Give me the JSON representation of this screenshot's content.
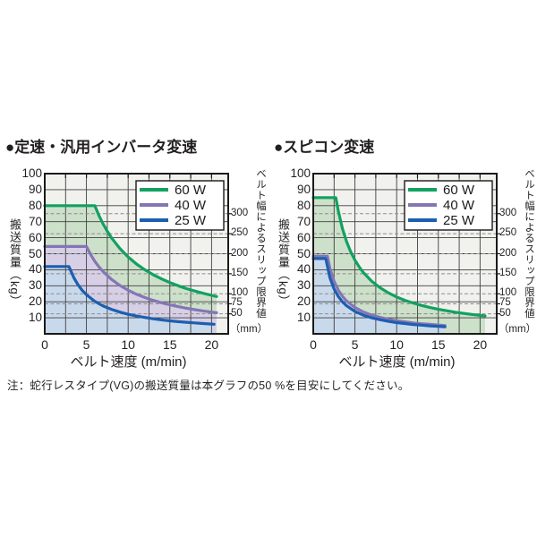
{
  "page": {
    "note": "注：蛇行レスタイプ(VG)の搬送質量は本グラフの50 %を目安にしてください。"
  },
  "style": {
    "plot_bg": "#f1f2ee",
    "grid_color": "#3f3f3f",
    "dash_color": "#8c8c8c",
    "border_color": "#1a1a1a",
    "legend_bg": "#ffffff"
  },
  "chart_data": [
    {
      "type": "line",
      "title": "●定速・汎用インバータ変速",
      "xlabel": "ベルト速度 (m/min)",
      "ylabel": "搬送質量（kg）",
      "y2label": "ベルト幅によるスリップ限界値",
      "y2unit": "（mm）",
      "xlim": [
        0,
        22
      ],
      "ylim": [
        0,
        100
      ],
      "x_ticks": [
        0,
        5,
        10,
        15,
        20
      ],
      "x_minor_step": 2.5,
      "y_ticks": [
        10,
        20,
        30,
        40,
        50,
        60,
        70,
        80,
        90,
        100
      ],
      "y2_ticks_mm": [
        300,
        250,
        200,
        150,
        100,
        75,
        50
      ],
      "kg_per_mm": 0.25,
      "grid": true,
      "legend_position": "top-right",
      "series": [
        {
          "name": "60 W",
          "color": "#12a160",
          "fill": "#cde0ca",
          "points": [
            [
              0,
              80
            ],
            [
              6,
              80
            ],
            [
              6.5,
              73.8
            ],
            [
              7,
              68.6
            ],
            [
              7.5,
              64
            ],
            [
              8,
              60
            ],
            [
              9,
              53.3
            ],
            [
              10,
              48
            ],
            [
              11,
              43.6
            ],
            [
              12,
              40
            ],
            [
              13,
              36.9
            ],
            [
              14,
              34.3
            ],
            [
              15,
              32
            ],
            [
              16,
              30
            ],
            [
              17,
              28.2
            ],
            [
              18,
              26.7
            ],
            [
              19,
              25.3
            ],
            [
              20,
              24
            ],
            [
              20.6,
              23.3
            ]
          ]
        },
        {
          "name": "40 W",
          "color": "#8476b5",
          "fill": "#d6cfe6",
          "points": [
            [
              0,
              54.5
            ],
            [
              5,
              54.5
            ],
            [
              5.5,
              49.5
            ],
            [
              6,
              45.3
            ],
            [
              6.5,
              41.8
            ],
            [
              7,
              38.9
            ],
            [
              8,
              34
            ],
            [
              9,
              30.2
            ],
            [
              10,
              27.2
            ],
            [
              11,
              24.7
            ],
            [
              12,
              22.7
            ],
            [
              13,
              20.9
            ],
            [
              14,
              19.4
            ],
            [
              15,
              18.1
            ],
            [
              16,
              17
            ],
            [
              17,
              16
            ],
            [
              18,
              15.1
            ],
            [
              19,
              14.3
            ],
            [
              20,
              13.6
            ],
            [
              20.6,
              13.2
            ]
          ]
        },
        {
          "name": "25 W",
          "color": "#1c5fb0",
          "fill": "#c9d9ec",
          "points": [
            [
              0,
              42
            ],
            [
              2.9,
              42
            ],
            [
              3.5,
              34.9
            ],
            [
              4,
              30.5
            ],
            [
              4.5,
              27.1
            ],
            [
              5,
              24.4
            ],
            [
              6,
              20.3
            ],
            [
              7,
              17.4
            ],
            [
              8,
              15.3
            ],
            [
              9,
              13.6
            ],
            [
              10,
              12.2
            ],
            [
              11,
              11.1
            ],
            [
              12,
              10.2
            ],
            [
              13,
              9.4
            ],
            [
              14,
              8.7
            ],
            [
              15,
              8.1
            ],
            [
              16,
              7.6
            ],
            [
              17,
              7.2
            ],
            [
              18,
              6.8
            ],
            [
              19,
              6.4
            ],
            [
              20,
              6.1
            ],
            [
              20.3,
              6
            ]
          ]
        }
      ]
    },
    {
      "type": "line",
      "title": "●スピコン変速",
      "xlabel": "ベルト速度 (m/min)",
      "ylabel": "搬送質量（kg）",
      "y2label": "ベルト幅によるスリップ限界値",
      "y2unit": "（mm）",
      "xlim": [
        0,
        22
      ],
      "ylim": [
        0,
        100
      ],
      "x_ticks": [
        0,
        5,
        10,
        15,
        20
      ],
      "x_minor_step": 2.5,
      "y_ticks": [
        10,
        20,
        30,
        40,
        50,
        60,
        70,
        80,
        90,
        100
      ],
      "y2_ticks_mm": [
        300,
        250,
        200,
        150,
        100,
        75,
        50
      ],
      "kg_per_mm": 0.25,
      "grid": true,
      "legend_position": "top-right",
      "series": [
        {
          "name": "60 W",
          "color": "#12a160",
          "fill": "#cde0ca",
          "points": [
            [
              0,
              85
            ],
            [
              2.7,
              85
            ],
            [
              3,
              76.7
            ],
            [
              3.5,
              65.7
            ],
            [
              4,
              57.5
            ],
            [
              4.5,
              51.1
            ],
            [
              5,
              46
            ],
            [
              5.5,
              41.8
            ],
            [
              6,
              38.3
            ],
            [
              7,
              32.9
            ],
            [
              8,
              28.8
            ],
            [
              9,
              25.6
            ],
            [
              10,
              23
            ],
            [
              11,
              20.9
            ],
            [
              12,
              19.2
            ],
            [
              13,
              17.7
            ],
            [
              14,
              16.4
            ],
            [
              15,
              15.3
            ],
            [
              16,
              14.4
            ],
            [
              17,
              13.5
            ],
            [
              18,
              12.8
            ],
            [
              19,
              12.1
            ],
            [
              20,
              11.5
            ],
            [
              20.6,
              11.2
            ]
          ]
        },
        {
          "name": "40 W",
          "color": "#8476b5",
          "fill": "#d6cfe6",
          "points": [
            [
              0,
              48.5
            ],
            [
              1.7,
              48.5
            ],
            [
              2,
              41
            ],
            [
              2.5,
              32.8
            ],
            [
              3,
              27.3
            ],
            [
              3.5,
              23.4
            ],
            [
              4,
              20.5
            ],
            [
              5,
              16.4
            ],
            [
              6,
              13.7
            ],
            [
              7,
              11.7
            ],
            [
              8,
              10.3
            ],
            [
              9,
              9.1
            ],
            [
              10,
              8.2
            ],
            [
              11,
              7.5
            ],
            [
              12,
              6.8
            ],
            [
              13,
              6.3
            ],
            [
              14,
              5.9
            ],
            [
              15,
              5.5
            ],
            [
              15.8,
              5.2
            ]
          ]
        },
        {
          "name": "25 W",
          "color": "#1c5fb0",
          "fill": "#c9d9ec",
          "points": [
            [
              0,
              47
            ],
            [
              1.5,
              47
            ],
            [
              2,
              35
            ],
            [
              2.5,
              28
            ],
            [
              3,
              23.3
            ],
            [
              3.5,
              20
            ],
            [
              4,
              17.5
            ],
            [
              5,
              14
            ],
            [
              6,
              11.7
            ],
            [
              7,
              10
            ],
            [
              8,
              8.8
            ],
            [
              9,
              7.8
            ],
            [
              10,
              7
            ],
            [
              11,
              6.4
            ],
            [
              12,
              5.8
            ],
            [
              13,
              5.4
            ],
            [
              14,
              5
            ],
            [
              15,
              4.7
            ],
            [
              15.8,
              4.4
            ]
          ]
        }
      ]
    }
  ]
}
